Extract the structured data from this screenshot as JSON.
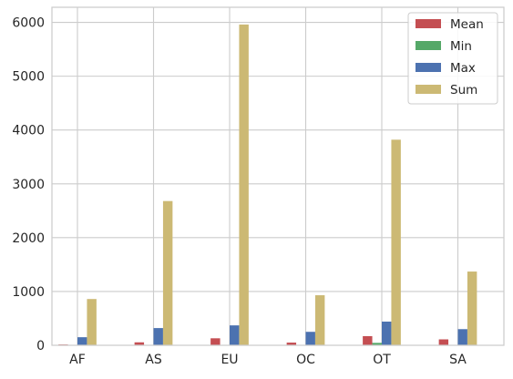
{
  "chart_data": {
    "type": "bar",
    "title": "",
    "xlabel": "",
    "ylabel": "",
    "categories": [
      "AF",
      "AS",
      "EU",
      "OC",
      "OT",
      "SA"
    ],
    "series": [
      {
        "name": "Mean",
        "color": "#c44e52",
        "values": [
          15,
          55,
          130,
          50,
          170,
          110
        ]
      },
      {
        "name": "Min",
        "color": "#55a868",
        "values": [
          0,
          0,
          0,
          0,
          45,
          0
        ]
      },
      {
        "name": "Max",
        "color": "#4c72b0",
        "values": [
          150,
          320,
          370,
          250,
          440,
          300
        ]
      },
      {
        "name": "Sum",
        "color": "#ccb974",
        "values": [
          860,
          2680,
          5960,
          930,
          3820,
          1370
        ]
      }
    ],
    "ylim": [
      0,
      6280
    ],
    "yticks": [
      0,
      1000,
      2000,
      3000,
      4000,
      5000,
      6000
    ],
    "grid": true,
    "legend_position": "top-right"
  }
}
